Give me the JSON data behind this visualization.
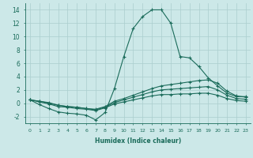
{
  "xlabel": "Humidex (Indice chaleur)",
  "x": [
    0,
    1,
    2,
    3,
    4,
    5,
    6,
    7,
    8,
    9,
    10,
    11,
    12,
    13,
    14,
    15,
    16,
    17,
    18,
    19,
    20,
    21,
    22,
    23
  ],
  "line1": [
    0.5,
    -0.2,
    -0.8,
    -1.3,
    -1.5,
    -1.6,
    -1.8,
    -2.5,
    -1.4,
    2.2,
    7.0,
    11.2,
    13.0,
    14.0,
    14.0,
    12.0,
    7.0,
    6.8,
    5.5,
    3.8,
    2.6,
    1.5,
    1.0,
    1.0
  ],
  "line2": [
    0.5,
    0.3,
    0.1,
    -0.3,
    -0.5,
    -0.6,
    -0.8,
    -0.9,
    -0.5,
    0.3,
    0.7,
    1.2,
    1.7,
    2.2,
    2.6,
    2.8,
    3.0,
    3.2,
    3.4,
    3.5,
    3.0,
    1.8,
    1.1,
    0.9
  ],
  "line3": [
    0.5,
    0.3,
    0.0,
    -0.3,
    -0.5,
    -0.6,
    -0.8,
    -1.0,
    -0.6,
    0.1,
    0.5,
    0.9,
    1.3,
    1.7,
    2.0,
    2.1,
    2.2,
    2.3,
    2.4,
    2.5,
    2.0,
    1.2,
    0.7,
    0.6
  ],
  "line4": [
    0.5,
    0.2,
    -0.1,
    -0.5,
    -0.6,
    -0.8,
    -0.9,
    -1.1,
    -0.7,
    -0.1,
    0.2,
    0.5,
    0.8,
    1.1,
    1.3,
    1.3,
    1.4,
    1.4,
    1.5,
    1.5,
    1.2,
    0.7,
    0.4,
    0.3
  ],
  "line_color": "#1a6b5a",
  "bg_color": "#cce8e8",
  "grid_color": "#aacece",
  "ylim": [
    -3,
    15
  ],
  "yticks": [
    -2,
    0,
    2,
    4,
    6,
    8,
    10,
    12,
    14
  ],
  "xticks": [
    0,
    1,
    2,
    3,
    4,
    5,
    6,
    7,
    8,
    9,
    10,
    11,
    12,
    13,
    14,
    15,
    16,
    17,
    18,
    19,
    20,
    21,
    22,
    23
  ]
}
